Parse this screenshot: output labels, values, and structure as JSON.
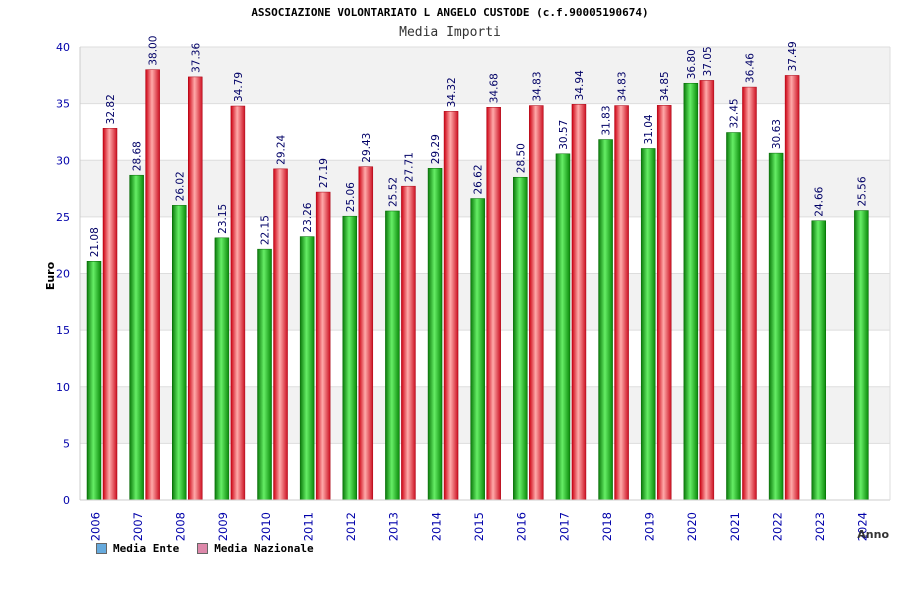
{
  "chart_data": {
    "type": "bar",
    "title": "ASSOCIAZIONE VOLONTARIATO L ANGELO CUSTODE (c.f.90005190674)",
    "subtitle": "Media Importi",
    "xlabel": "Anno",
    "ylabel": "Euro",
    "ylim": [
      0,
      40
    ],
    "yticks": [
      0,
      5,
      10,
      15,
      20,
      25,
      30,
      35,
      40
    ],
    "categories": [
      "2006",
      "2007",
      "2008",
      "2009",
      "2010",
      "2011",
      "2012",
      "2013",
      "2014",
      "2015",
      "2016",
      "2017",
      "2018",
      "2019",
      "2020",
      "2021",
      "2022",
      "2023",
      "2024"
    ],
    "series": [
      {
        "name": "Media Ente",
        "color": "#22aa22",
        "values": [
          21.08,
          28.68,
          26.02,
          23.15,
          22.15,
          23.26,
          25.06,
          25.52,
          29.29,
          26.62,
          28.5,
          30.57,
          31.83,
          31.04,
          36.8,
          32.45,
          30.63,
          24.66,
          25.56
        ],
        "labels": [
          "21.08",
          "28.68",
          "26.02",
          "23.15",
          "22.15",
          "23.26",
          "25.06",
          "25.52",
          "29.29",
          "26.62",
          "28.50",
          "30.57",
          "31.83",
          "31.04",
          "36.80",
          "32.45",
          "30.63",
          "24.66",
          "25.56"
        ]
      },
      {
        "name": "Media Nazionale",
        "color": "#dd2233",
        "values": [
          32.82,
          38.0,
          37.36,
          34.79,
          29.24,
          27.19,
          29.43,
          27.71,
          34.32,
          34.68,
          34.83,
          34.94,
          34.83,
          34.85,
          37.05,
          36.46,
          37.49,
          null,
          null
        ],
        "labels": [
          "32.82",
          "38.00",
          "37.36",
          "34.79",
          "29.24",
          "27.19",
          "29.43",
          "27.71",
          "34.32",
          "34.68",
          "34.83",
          "34.94",
          "34.83",
          "34.85",
          "37.05",
          "36.46",
          "37.49",
          "",
          ""
        ]
      }
    ],
    "legend": {
      "placement": "bottom-left",
      "items": [
        {
          "label": "Media Ente",
          "swatch": "#66aadd"
        },
        {
          "label": "Media Nazionale",
          "swatch": "#dd88aa"
        }
      ]
    },
    "grid": true,
    "colors": {
      "axis_text": "#0000aa",
      "band": "#f2f2f2",
      "gridline": "#dddddd"
    }
  }
}
